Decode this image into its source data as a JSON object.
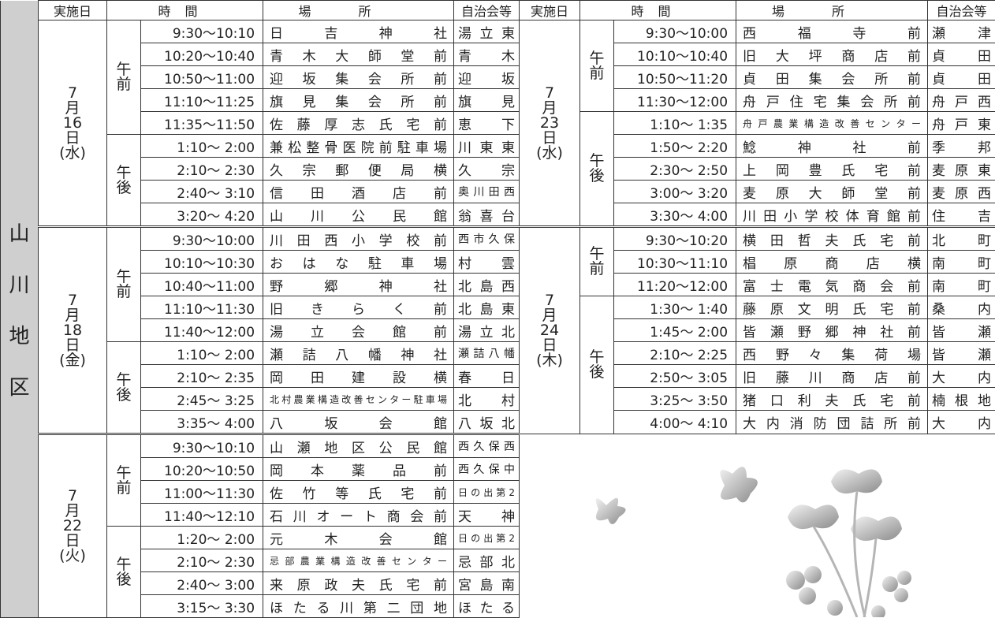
{
  "region": "山川地区",
  "headers": [
    "実施日",
    "時間",
    "場所",
    "自治会等"
  ],
  "columns": [
    {
      "blocks": [
        {
          "date": "7月16日(水)",
          "groups": [
            {
              "period": "午前",
              "rows": [
                [
                  "9:30～10:10",
                  "日吉神社",
                  "湯立東"
                ],
                [
                  "10:20～10:40",
                  "青木大師堂前",
                  "青木"
                ],
                [
                  "10:50～11:00",
                  "迎坂集会所前",
                  "迎坂"
                ],
                [
                  "11:10～11:25",
                  "旗見集会所前",
                  "旗見"
                ],
                [
                  "11:35～11:50",
                  "佐藤厚志氏宅前",
                  "恵下"
                ]
              ]
            },
            {
              "period": "午後",
              "rows": [
                [
                  "1:10～ 2:00",
                  "兼松整骨医院前駐車場",
                  "川東東"
                ],
                [
                  "2:10～ 2:30",
                  "久宗郵便局横",
                  "久宗"
                ],
                [
                  "2:40～ 3:10",
                  "信田酒店前",
                  "奥川田西"
                ],
                [
                  "3:20～ 4:20",
                  "山川公民館",
                  "翁喜台"
                ]
              ]
            }
          ]
        },
        {
          "date": "7月18日(金)",
          "groups": [
            {
              "period": "午前",
              "rows": [
                [
                  "9:30～10:00",
                  "川田西小学校前",
                  "西市久保"
                ],
                [
                  "10:10～10:30",
                  "おはな駐車場",
                  "村雲"
                ],
                [
                  "10:40～11:00",
                  "野郷神社",
                  "北島西"
                ],
                [
                  "11:10～11:30",
                  "旧きらく前",
                  "北島東"
                ],
                [
                  "11:40～12:00",
                  "湯立会館前",
                  "湯立北"
                ]
              ]
            },
            {
              "period": "午後",
              "rows": [
                [
                  "1:10～ 2:00",
                  "瀬詰八幡神社",
                  "瀬詰八幡"
                ],
                [
                  "2:10～ 2:35",
                  "岡田建設横",
                  "春日"
                ],
                [
                  "2:45～ 3:25",
                  "北村農業構造改善センター駐車場",
                  "北村"
                ],
                [
                  "3:35～ 4:00",
                  "八坂会館",
                  "八坂北"
                ]
              ]
            }
          ]
        },
        {
          "date": "7月22日(火)",
          "groups": [
            {
              "period": "午前",
              "rows": [
                [
                  "9:30～10:10",
                  "山瀬地区公民館",
                  "西久保西"
                ],
                [
                  "10:20～10:50",
                  "岡本薬品前",
                  "西久保中"
                ],
                [
                  "11:00～11:30",
                  "佐竹等氏宅前",
                  "日の出第2"
                ],
                [
                  "11:40～12:10",
                  "石川オート商会前",
                  "天神"
                ]
              ]
            },
            {
              "period": "午後",
              "rows": [
                [
                  "1:20～ 2:00",
                  "元木会館",
                  "日の出第2"
                ],
                [
                  "2:10～ 2:30",
                  "忌部農業構造改善センター",
                  "忌部北"
                ],
                [
                  "2:40～ 3:00",
                  "来原政夫氏宅前",
                  "宮島南"
                ],
                [
                  "3:15～ 3:30",
                  "ほたる川第二団地",
                  "ほたる"
                ]
              ]
            }
          ]
        }
      ]
    },
    {
      "blocks": [
        {
          "date": "7月23日(水)",
          "groups": [
            {
              "period": "午前",
              "rows": [
                [
                  "9:30～10:00",
                  "西福寺前",
                  "瀬津"
                ],
                [
                  "10:10～10:40",
                  "旧大坪商店前",
                  "貞田"
                ],
                [
                  "10:50～11:20",
                  "貞田集会所前",
                  "貞田"
                ],
                [
                  "11:30～12:00",
                  "舟戸住宅集会所前",
                  "舟戸西"
                ]
              ]
            },
            {
              "period": "午後",
              "rows": [
                [
                  "1:10～ 1:35",
                  "舟戸農業構造改善センター",
                  "舟戸東"
                ],
                [
                  "1:50～ 2:20",
                  "鯰神社前",
                  "季邦"
                ],
                [
                  "2:30～ 2:50",
                  "上岡豊氏宅前",
                  "麦原東"
                ],
                [
                  "3:00～ 3:20",
                  "麦原大師堂前",
                  "麦原西"
                ],
                [
                  "3:30～ 4:00",
                  "川田小学校体育館前",
                  "住吉"
                ]
              ]
            }
          ]
        },
        {
          "date": "7月24日(木)",
          "groups": [
            {
              "period": "午前",
              "rows": [
                [
                  "9:30～10:20",
                  "横田哲夫氏宅前",
                  "北町"
                ],
                [
                  "10:30～11:10",
                  "椙原商店横",
                  "南町"
                ],
                [
                  "11:20～12:00",
                  "富士電気商会前",
                  "南町"
                ]
              ]
            },
            {
              "period": "午後",
              "rows": [
                [
                  "1:30～ 1:40",
                  "藤原文明氏宅前",
                  "桑内"
                ],
                [
                  "1:45～ 2:00",
                  "皆瀬野郷神社前",
                  "皆瀬"
                ],
                [
                  "2:10～ 2:25",
                  "西野々集荷場",
                  "皆瀬"
                ],
                [
                  "2:50～ 3:05",
                  "旧藤川商店前",
                  "大内"
                ],
                [
                  "3:25～ 3:50",
                  "猪口利夫氏宅前",
                  "楠根地"
                ],
                [
                  "4:00～ 4:10",
                  "大内消防団詰所前",
                  "大内"
                ]
              ]
            }
          ]
        }
      ]
    }
  ]
}
